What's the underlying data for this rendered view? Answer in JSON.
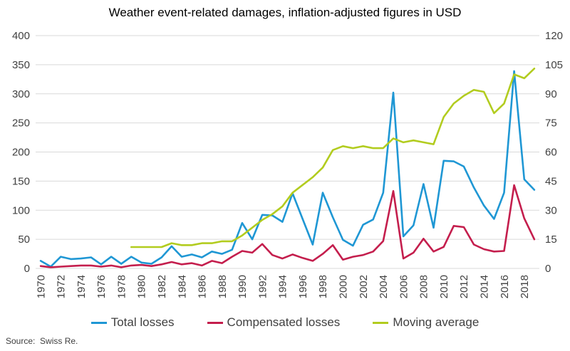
{
  "title": "Weather event-related damages, inflation-adjusted figures in USD",
  "source": "Source:  Swiss Re.",
  "colors": {
    "total_losses": "#1f97d4",
    "compensated_losses": "#c41e4d",
    "moving_average": "#b2cc1f",
    "gridline": "#d9d9d9",
    "axis_text": "#404040",
    "title_text": "#000000"
  },
  "chart_data": {
    "type": "line",
    "title": "Weather event-related damages, inflation-adjusted figures in USD",
    "x": [
      1970,
      1971,
      1972,
      1973,
      1974,
      1975,
      1976,
      1977,
      1978,
      1979,
      1980,
      1981,
      1982,
      1983,
      1984,
      1985,
      1986,
      1987,
      1988,
      1989,
      1990,
      1991,
      1992,
      1993,
      1994,
      1995,
      1996,
      1997,
      1998,
      1999,
      2000,
      2001,
      2002,
      2003,
      2004,
      2005,
      2006,
      2007,
      2008,
      2009,
      2010,
      2011,
      2012,
      2013,
      2014,
      2015,
      2016,
      2017,
      2018,
      2019
    ],
    "x_tick_labels": [
      "1970",
      "1972",
      "1974",
      "1976",
      "1978",
      "1980",
      "1982",
      "1984",
      "1986",
      "1988",
      "1990",
      "1992",
      "1994",
      "1996",
      "1998",
      "2000",
      "2002",
      "2004",
      "2006",
      "2008",
      "2010",
      "2012",
      "2014",
      "2016",
      "2018"
    ],
    "left_axis": {
      "min": 0,
      "max": 400,
      "ticks": [
        400,
        350,
        300,
        250,
        200,
        150,
        100,
        50,
        0
      ]
    },
    "right_axis": {
      "min": 0,
      "max": 120,
      "ticks": [
        120,
        105,
        90,
        75,
        60,
        45,
        30,
        15,
        0
      ]
    },
    "grid": true,
    "legend_position": "bottom",
    "series": [
      {
        "name": "Total losses",
        "axis": "left",
        "color": "#1f97d4",
        "values": [
          13,
          3,
          20,
          16,
          17,
          19,
          7,
          20,
          8,
          20,
          10,
          8,
          19,
          38,
          20,
          24,
          19,
          29,
          25,
          32,
          78,
          50,
          92,
          91,
          80,
          129,
          85,
          41,
          130,
          88,
          49,
          39,
          75,
          84,
          130,
          302,
          55,
          74,
          145,
          70,
          185,
          184,
          175,
          139,
          108,
          85,
          130,
          339,
          153,
          135
        ]
      },
      {
        "name": "Compensated losses",
        "axis": "left",
        "color": "#c41e4d",
        "values": [
          4,
          2,
          3,
          4,
          5,
          5,
          3,
          5,
          2,
          5,
          6,
          4,
          7,
          11,
          7,
          9,
          5,
          13,
          9,
          20,
          30,
          27,
          42,
          23,
          17,
          24,
          18,
          13,
          25,
          40,
          15,
          20,
          23,
          29,
          47,
          133,
          17,
          27,
          51,
          29,
          37,
          73,
          71,
          41,
          33,
          29,
          30,
          143,
          86,
          50
        ]
      },
      {
        "name": "Moving average",
        "axis": "right",
        "color": "#b2cc1f",
        "values": [
          null,
          null,
          null,
          null,
          null,
          null,
          null,
          null,
          null,
          11,
          11,
          11,
          11,
          13,
          12,
          12,
          13,
          13,
          14,
          14,
          17,
          21,
          25,
          28,
          32,
          39,
          43,
          47,
          52,
          61,
          63,
          62,
          63,
          62,
          62,
          67,
          65,
          66,
          65,
          64,
          78,
          85,
          89,
          92,
          91,
          80,
          85,
          100,
          98,
          103
        ]
      }
    ]
  }
}
